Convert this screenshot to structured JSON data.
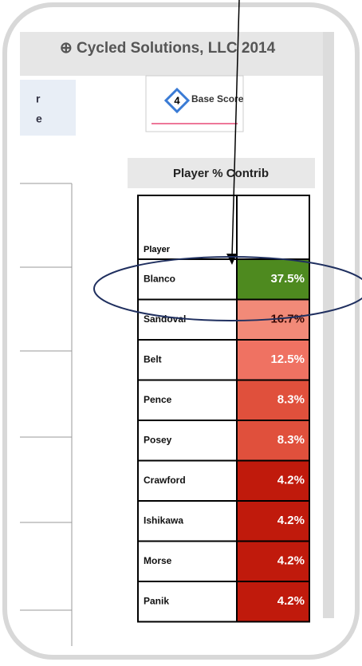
{
  "header": {
    "title": "⊕ Cycled Solutions, LLC 2014",
    "left_fragments": [
      "r",
      "e"
    ]
  },
  "logo": {
    "number": "4",
    "name": "Base Score"
  },
  "table": {
    "title": "Player % Contrib",
    "column_header": "Player",
    "rows": [
      {
        "name": "Blanco",
        "contrib": "37.5%",
        "color": "#4e8a1f"
      },
      {
        "name": "Sandoval",
        "contrib": "16.7%",
        "color": "#f28a78"
      },
      {
        "name": "Belt",
        "contrib": "12.5%",
        "color": "#ef7262"
      },
      {
        "name": "Pence",
        "contrib": "8.3%",
        "color": "#e0503c"
      },
      {
        "name": "Posey",
        "contrib": "8.3%",
        "color": "#e0503c"
      },
      {
        "name": "Crawford",
        "contrib": "4.2%",
        "color": "#c01a0c"
      },
      {
        "name": "Ishikawa",
        "contrib": "4.2%",
        "color": "#c01a0c"
      },
      {
        "name": "Morse",
        "contrib": "4.2%",
        "color": "#c01a0c"
      },
      {
        "name": "Panik",
        "contrib": "4.2%",
        "color": "#c01a0c"
      }
    ]
  }
}
